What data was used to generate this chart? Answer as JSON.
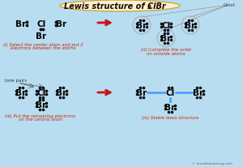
{
  "bg_color": "#b8ddf0",
  "title_bg": "#fdf0d0",
  "title_border": "#c8a840",
  "title_text": "Lewis structure of ClBr",
  "title_sub": "3",
  "title_color": "#1a0a00",
  "arrow_color": "#cc1111",
  "bond_color": "#4499ff",
  "dot_color": "#111111",
  "label_color": "#cc2200",
  "octet_circle_color": "#aaaaaa",
  "watermark": "© knordislearning.com",
  "lone_pairs_label": "lone pairs",
  "octet_label": "Octet"
}
